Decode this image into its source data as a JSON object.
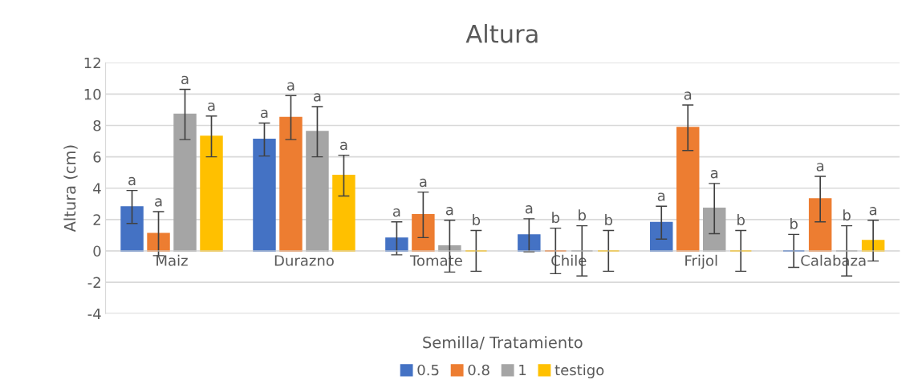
{
  "chart_data": {
    "type": "bar",
    "title": "Altura",
    "xlabel": "Semilla/ Tratamiento",
    "ylabel": "Altura (cm)",
    "categories": [
      "Maiz",
      "Durazno",
      "Tomate",
      "Chile",
      "Frijol",
      "Calabaza"
    ],
    "series": [
      {
        "name": "0.5",
        "color": "#4472c4",
        "values": [
          2.8,
          7.1,
          0.8,
          1.0,
          1.8,
          0
        ],
        "errors": [
          1.05,
          1.05,
          1.05,
          1.05,
          1.05,
          1.05
        ],
        "value_labels": [
          "a",
          "a",
          "a",
          "a",
          "a",
          "b"
        ]
      },
      {
        "name": "0.8",
        "color": "#ed7d31",
        "values": [
          1.1,
          8.5,
          2.3,
          0,
          7.85,
          3.3
        ],
        "errors": [
          1.4,
          1.4,
          1.45,
          1.45,
          1.45,
          1.45
        ],
        "value_labels": [
          "a",
          "a",
          "a",
          "b",
          "a",
          "a"
        ]
      },
      {
        "name": "1",
        "color": "#a5a5a5",
        "values": [
          8.7,
          7.6,
          0.3,
          0,
          2.7,
          0
        ],
        "errors": [
          1.6,
          1.6,
          1.65,
          1.6,
          1.6,
          1.6
        ],
        "value_labels": [
          "a",
          "a",
          "a",
          "b",
          "a",
          "b"
        ]
      },
      {
        "name": "testigo",
        "color": "#ffc000",
        "values": [
          7.3,
          4.8,
          0,
          0,
          0,
          0.65
        ],
        "errors": [
          1.3,
          1.3,
          1.3,
          1.3,
          1.3,
          1.3
        ],
        "value_labels": [
          "a",
          "a",
          "b",
          "b",
          "b",
          "a"
        ]
      }
    ],
    "ylim": [
      -4,
      12
    ],
    "yticks": [
      -4,
      -2,
      0,
      2,
      4,
      6,
      8,
      10,
      12
    ],
    "grid": "y",
    "legend": "bottom"
  }
}
